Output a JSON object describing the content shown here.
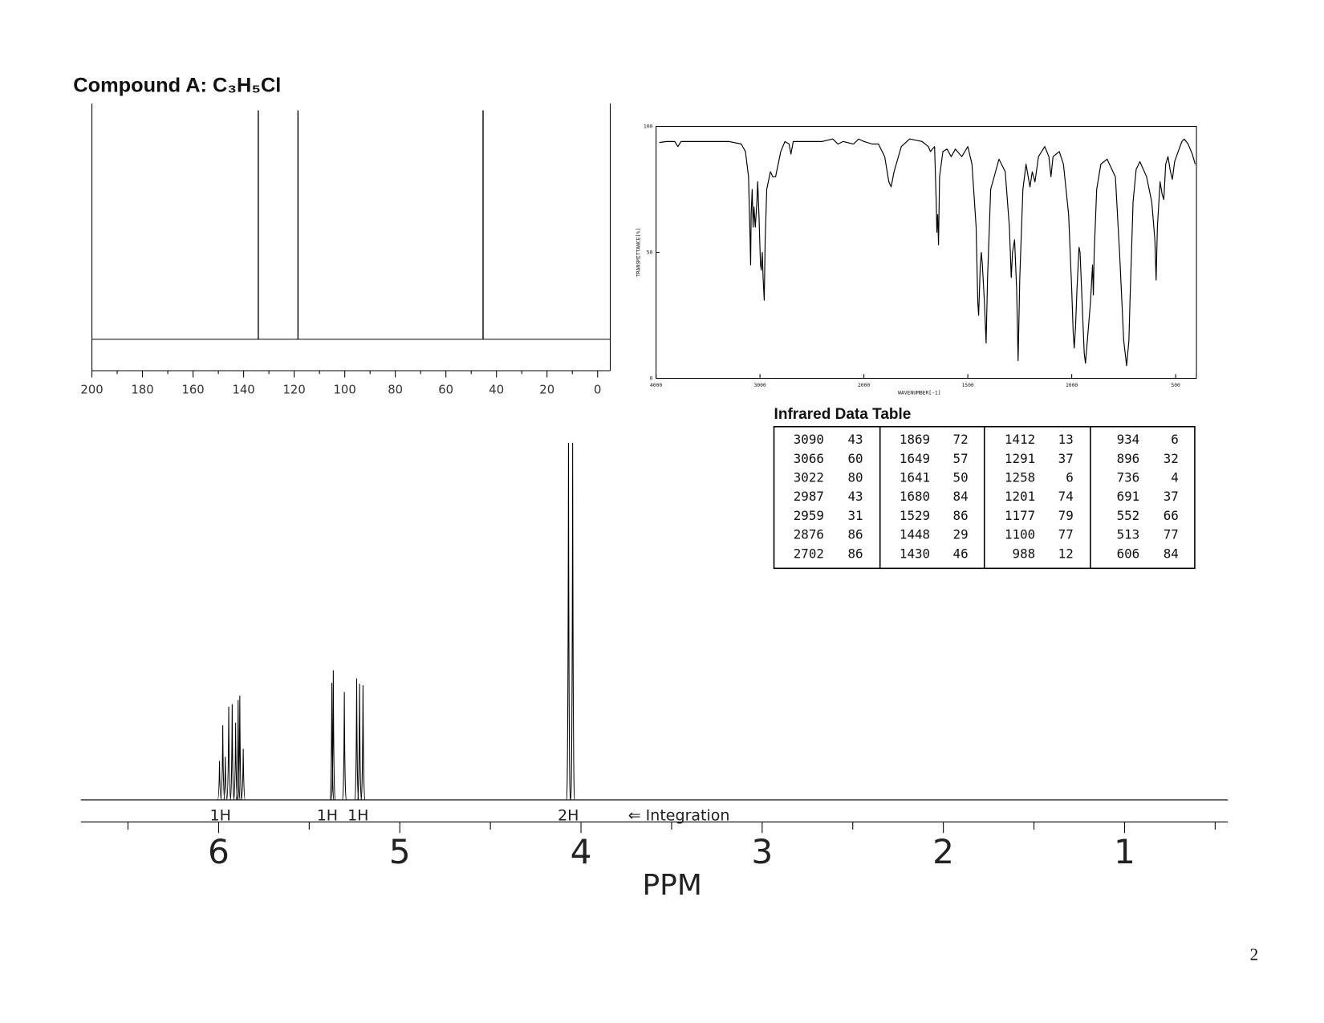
{
  "header": {
    "title": "Compound A: C₃H₅Cl"
  },
  "chart_data": [
    {
      "type": "stick",
      "xlim": [
        200,
        -5
      ],
      "xticks": [
        200,
        180,
        160,
        140,
        120,
        100,
        80,
        60,
        40,
        20,
        0
      ],
      "xminorticks": [
        190,
        170,
        150,
        130,
        110,
        90,
        70,
        50,
        30,
        10
      ],
      "peaks": [
        134.2,
        118.5,
        45.3
      ]
    },
    {
      "type": "line",
      "xlabel": "WAVENUMBER[-1]",
      "ylabel": "TRANSMITTANCE[%]",
      "xlim": [
        4000,
        400
      ],
      "xscale_break": 2000,
      "xticks": [
        4000,
        3000,
        2000,
        1500,
        1000,
        500
      ],
      "ylim": [
        0,
        100
      ],
      "yticks": [
        0,
        50,
        100
      ],
      "color": "#000000",
      "x": [
        3968,
        3900,
        3820,
        3790,
        3760,
        3500,
        3300,
        3180,
        3140,
        3110,
        3095,
        3090,
        3085,
        3075,
        3066,
        3058,
        3045,
        3030,
        3022,
        3010,
        2995,
        2987,
        2978,
        2970,
        2959,
        2950,
        2935,
        2920,
        2900,
        2876,
        2850,
        2800,
        2760,
        2720,
        2702,
        2680,
        2500,
        2400,
        2300,
        2250,
        2200,
        2100,
        2050,
        2000,
        1960,
        1930,
        1900,
        1880,
        1869,
        1855,
        1820,
        1780,
        1720,
        1690,
        1680,
        1660,
        1652,
        1649,
        1645,
        1641,
        1636,
        1620,
        1600,
        1580,
        1560,
        1529,
        1500,
        1480,
        1460,
        1452,
        1448,
        1440,
        1435,
        1430,
        1420,
        1412,
        1405,
        1390,
        1350,
        1320,
        1300,
        1291,
        1285,
        1275,
        1265,
        1258,
        1250,
        1235,
        1220,
        1201,
        1190,
        1177,
        1160,
        1130,
        1110,
        1100,
        1090,
        1060,
        1040,
        1015,
        1000,
        993,
        988,
        982,
        975,
        965,
        960,
        950,
        940,
        934,
        925,
        910,
        900,
        896,
        892,
        880,
        860,
        830,
        790,
        770,
        750,
        736,
        725,
        720,
        705,
        690,
        672,
        640,
        615,
        600,
        594,
        588,
        575,
        565,
        557,
        548,
        537,
        525,
        516,
        505,
        488,
        470,
        459,
        440,
        420,
        406
      ],
      "values": [
        93.6,
        94,
        94,
        92,
        94,
        94,
        94,
        93,
        90,
        80,
        55,
        45,
        65,
        75,
        60,
        68,
        60,
        70,
        78,
        65,
        45,
        43,
        50,
        40,
        31,
        55,
        75,
        78,
        82,
        80,
        80,
        90,
        94,
        93,
        89,
        94,
        94,
        94,
        95,
        93,
        94,
        93,
        95,
        94,
        93,
        93,
        88,
        78,
        76,
        82,
        92,
        95,
        94,
        92,
        90,
        92,
        70,
        58,
        65,
        53,
        80,
        90,
        91,
        88,
        91,
        88,
        92,
        85,
        60,
        30,
        25,
        45,
        50,
        45,
        30,
        14,
        40,
        75,
        87,
        82,
        60,
        40,
        50,
        55,
        35,
        7,
        40,
        75,
        85,
        76,
        82,
        78,
        88,
        92,
        88,
        80,
        88,
        90,
        85,
        65,
        35,
        18,
        12,
        20,
        35,
        52,
        50,
        30,
        10,
        6,
        15,
        30,
        45,
        33,
        50,
        75,
        85,
        87,
        80,
        50,
        15,
        5,
        15,
        30,
        70,
        83,
        86,
        80,
        70,
        55,
        39,
        60,
        78,
        73,
        71,
        85,
        88,
        82,
        79,
        86,
        90,
        94,
        95,
        93,
        89,
        85
      ]
    },
    {
      "type": "nmr",
      "xlabel": "PPM",
      "xlim": [
        6.76,
        0.43
      ],
      "xticks": [
        6,
        5,
        4,
        3,
        2,
        1
      ],
      "xminorticks": [
        6.5,
        5.5,
        4.5,
        3.5,
        2.5,
        1.5,
        0.5
      ],
      "ylim": [
        0,
        100
      ],
      "peaks": {
        "x": [
          5.995,
          5.977,
          5.963,
          5.944,
          5.925,
          5.906,
          5.892,
          5.883,
          5.864,
          5.375,
          5.367,
          5.306,
          5.238,
          5.222,
          5.203,
          4.069,
          4.046
        ],
        "values": [
          10.9,
          20.9,
          12.1,
          26.1,
          26.8,
          21.6,
          28.0,
          29.2,
          14.3,
          32.8,
          36.3,
          30.2,
          34.0,
          32.5,
          32.1,
          100,
          100
        ]
      },
      "integrations": [
        {
          "label": "1H",
          "x": 5.99
        },
        {
          "label": "1H",
          "x": 5.4
        },
        {
          "label": "1H",
          "x": 5.23
        },
        {
          "label": "2H",
          "x": 4.07
        }
      ],
      "annotation": "⇐ Integration"
    }
  ],
  "table": {
    "title": "Infrared Data Table",
    "rows": [
      [
        "3090",
        "43",
        "1869",
        "72",
        "1412",
        "13",
        "934",
        "6"
      ],
      [
        "3066",
        "60",
        "1649",
        "57",
        "1291",
        "37",
        "896",
        "32"
      ],
      [
        "3022",
        "80",
        "1641",
        "50",
        "1258",
        "6",
        "736",
        "4"
      ],
      [
        "2987",
        "43",
        "1680",
        "84",
        "1201",
        "74",
        "691",
        "37"
      ],
      [
        "2959",
        "31",
        "1529",
        "86",
        "1177",
        "79",
        "552",
        "66"
      ],
      [
        "2876",
        "86",
        "1448",
        "29",
        "1100",
        "77",
        "513",
        "77"
      ],
      [
        "2702",
        "86",
        "1430",
        "46",
        "988",
        "12",
        "606",
        "84"
      ]
    ]
  },
  "page_number": "2"
}
